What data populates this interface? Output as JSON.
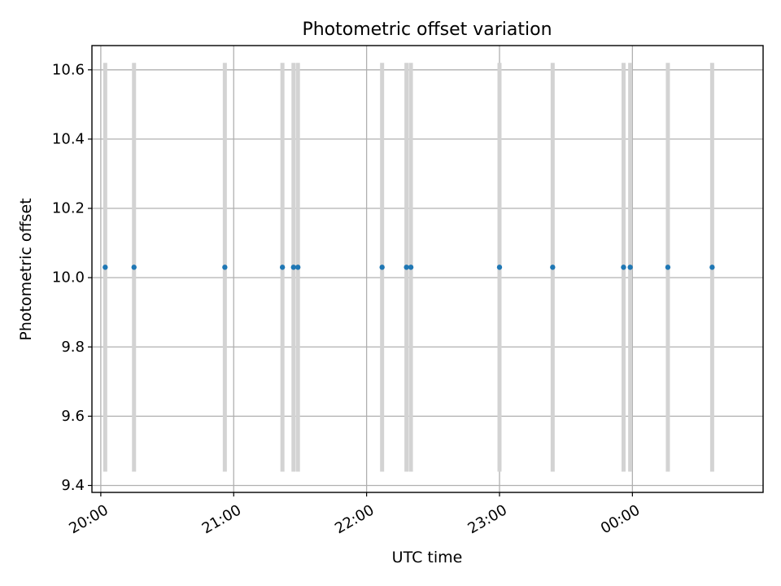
{
  "chart_data": {
    "type": "scatter",
    "title": "Photometric offset variation",
    "xlabel": "UTC time",
    "ylabel": "Photometric offset",
    "x_tick_labels": [
      "20:00",
      "21:00",
      "22:00",
      "23:00",
      "00:00"
    ],
    "y_tick_labels": [
      "9.4",
      "9.6",
      "9.8",
      "10.0",
      "10.2",
      "10.4",
      "10.6"
    ],
    "x_ticks": [
      "20:00",
      "21:00",
      "22:00",
      "23:00",
      "00:00"
    ],
    "y_ticks": [
      9.4,
      9.6,
      9.8,
      10.0,
      10.2,
      10.4,
      10.6
    ],
    "xlim": [
      "19:56",
      "00:59"
    ],
    "ylim": [
      9.38,
      10.67
    ],
    "grid": true,
    "x": [
      "20:02",
      "20:15",
      "20:56",
      "21:22",
      "21:27",
      "21:29",
      "22:07",
      "22:18",
      "22:20",
      "23:00",
      "23:24",
      "23:56",
      "23:59",
      "00:16",
      "00:36"
    ],
    "y": [
      10.03,
      10.03,
      10.03,
      10.03,
      10.03,
      10.03,
      10.03,
      10.03,
      10.03,
      10.03,
      10.03,
      10.03,
      10.03,
      10.03,
      10.03
    ],
    "error_low": 9.44,
    "error_high": 10.62,
    "colors": {
      "points": "#1f77b4",
      "error_bars": "#d3d3d3",
      "grid": "#b0b0b0"
    }
  }
}
